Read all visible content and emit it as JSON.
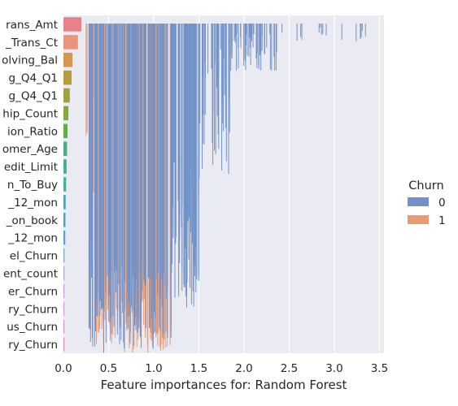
{
  "chart_data": {
    "type": "bar",
    "orientation": "horizontal",
    "xlabel": "Feature importances for: Random Forest",
    "ylabel": "",
    "xlim": [
      0,
      3.55
    ],
    "xticks": [
      "0.0",
      "0.5",
      "1.0",
      "1.5",
      "2.0",
      "2.5",
      "3.0",
      "3.5"
    ],
    "grid": true,
    "background_color": "#eaeaf2",
    "legend": {
      "title": "Churn",
      "placement": "right",
      "entries": [
        {
          "label": "0",
          "color": "#7192c9"
        },
        {
          "label": "1",
          "color": "#e99a71"
        }
      ]
    },
    "categories": [
      "rans_Amt",
      "_Trans_Ct",
      "olving_Bal",
      "g_Q4_Q1",
      "g_Q4_Q1",
      "hip_Count",
      "ion_Ratio",
      "omer_Age",
      "edit_Limit",
      "n_To_Buy",
      "_12_mon",
      "_on_book",
      "_12_mon",
      "el_Churn",
      "ent_count",
      "er_Churn",
      "ry_Churn",
      "us_Churn",
      "ry_Churn"
    ],
    "bar_values": [
      0.2,
      0.16,
      0.1,
      0.09,
      0.07,
      0.055,
      0.045,
      0.04,
      0.035,
      0.03,
      0.025,
      0.022,
      0.02,
      0.012,
      0.01,
      0.008,
      0.007,
      0.006,
      0.005
    ],
    "bar_colors": [
      "#e8828a",
      "#e8957a",
      "#d3974e",
      "#b89c3c",
      "#a1a23e",
      "#84a93f",
      "#5ead4e",
      "#4fad84",
      "#4aab98",
      "#4aaaa5",
      "#4aa8b1",
      "#4aa6bd",
      "#56a3cc",
      "#86a3d8",
      "#a8a3e3",
      "#c49de8",
      "#db97e3",
      "#e893d0",
      "#e98ec0"
    ],
    "series": [
      {
        "name": "0",
        "color": "#7192c9",
        "x_range": [
          0.28,
          3.38
        ]
      },
      {
        "name": "1",
        "color": "#e99a71",
        "x_range": [
          0.25,
          1.2
        ]
      }
    ]
  }
}
